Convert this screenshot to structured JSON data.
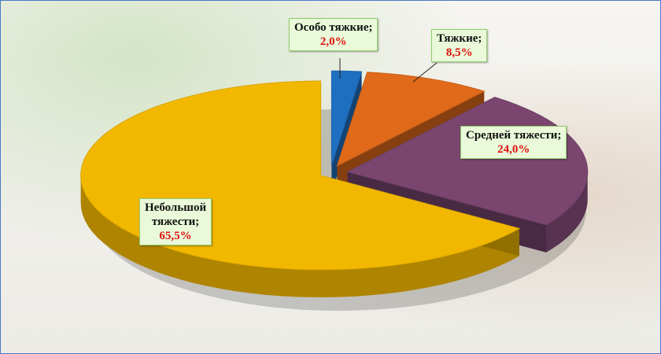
{
  "chart_data": {
    "type": "pie",
    "title": "",
    "slices": [
      {
        "name": "Особо тяжкие;",
        "value_label": "2,0%",
        "value": 2.0,
        "color": "#1f6fc0"
      },
      {
        "name": "Тяжкие;",
        "value_label": "8,5%",
        "value": 8.5,
        "color": "#e06a1a"
      },
      {
        "name": "Средней тяжести;",
        "value_label": "24,0%",
        "value": 24.0,
        "color": "#7a4670"
      },
      {
        "name": "Небольшой тяжести;",
        "name_lines": [
          "Небольшой",
          "тяжести;"
        ],
        "value_label": "65,5%",
        "value": 65.5,
        "color": "#f2b800"
      }
    ],
    "legend": "none",
    "style": "3d-exploded"
  }
}
